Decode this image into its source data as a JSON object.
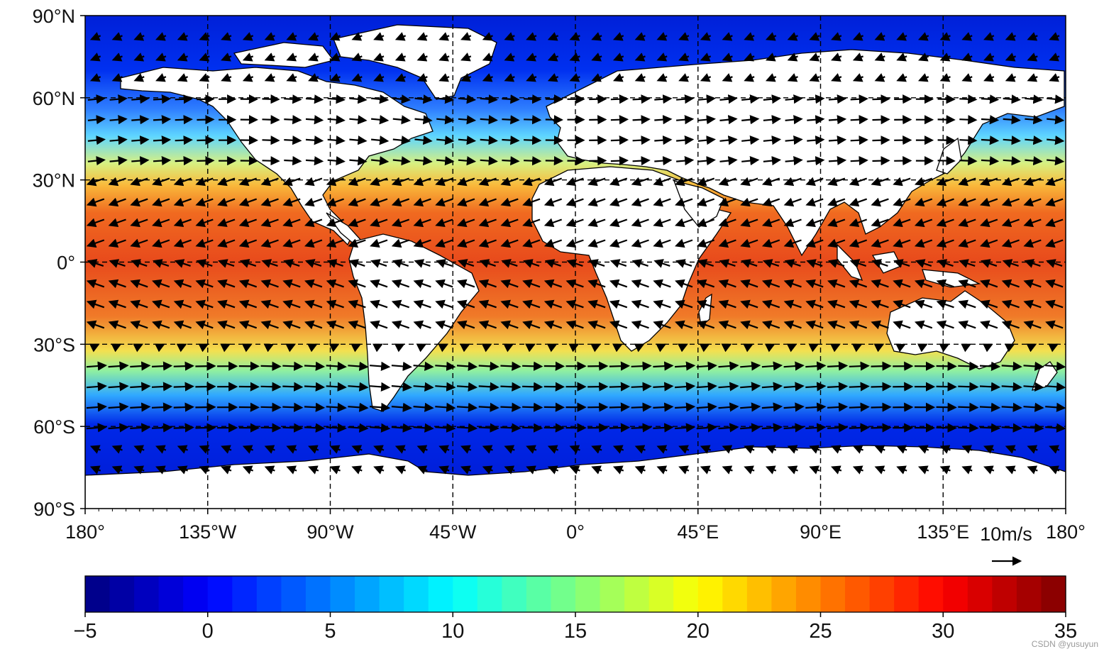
{
  "map": {
    "projection": "plate carree",
    "field": "sea surface temperature with wind vectors",
    "lon_range": [
      -180,
      180
    ],
    "lat_range": [
      -90,
      90
    ],
    "gridlines": "dashed black"
  },
  "axes": {
    "x_ticks": [
      {
        "value": -180,
        "label": "180°"
      },
      {
        "value": -135,
        "label": "135°W"
      },
      {
        "value": -90,
        "label": "90°W"
      },
      {
        "value": -45,
        "label": "45°W"
      },
      {
        "value": 0,
        "label": "0°"
      },
      {
        "value": 45,
        "label": "45°E"
      },
      {
        "value": 90,
        "label": "90°E"
      },
      {
        "value": 135,
        "label": "135°E"
      },
      {
        "value": 180,
        "label": "180°"
      }
    ],
    "y_ticks": [
      {
        "value": 90,
        "label": "90°N"
      },
      {
        "value": 60,
        "label": "60°N"
      },
      {
        "value": 30,
        "label": "30°N"
      },
      {
        "value": 0,
        "label": "0°"
      },
      {
        "value": -30,
        "label": "30°S"
      },
      {
        "value": -60,
        "label": "60°S"
      },
      {
        "value": -90,
        "label": "90°S"
      }
    ]
  },
  "quiver_key": {
    "label": "10m/s"
  },
  "colorbar": {
    "range": [
      -5,
      35
    ],
    "levels": 40,
    "ticks": [
      {
        "value": -5,
        "label": "−5"
      },
      {
        "value": 0,
        "label": "0"
      },
      {
        "value": 5,
        "label": "5"
      },
      {
        "value": 10,
        "label": "10"
      },
      {
        "value": 15,
        "label": "15"
      },
      {
        "value": 20,
        "label": "20"
      },
      {
        "value": 25,
        "label": "25"
      },
      {
        "value": 30,
        "label": "30"
      },
      {
        "value": 35,
        "label": "35"
      }
    ],
    "colormap": [
      "#00007f",
      "#0000ff",
      "#007fff",
      "#00ffff",
      "#7fff7f",
      "#ffff00",
      "#ff7f00",
      "#ff0000",
      "#7f0000"
    ]
  },
  "watermark": "CSDN @yusuyun",
  "chart_data": {
    "type": "heatmap",
    "title": "",
    "xlabel": "",
    "ylabel": "",
    "xlim": [
      -180,
      180
    ],
    "ylim": [
      -90,
      90
    ],
    "colorbar_range": [
      -5,
      35
    ],
    "sst_zonal_profile": [
      {
        "lat": 90,
        "value": -2
      },
      {
        "lat": 75,
        "value": -1
      },
      {
        "lat": 60,
        "value": 6
      },
      {
        "lat": 45,
        "value": 13
      },
      {
        "lat": 30,
        "value": 22
      },
      {
        "lat": 15,
        "value": 27
      },
      {
        "lat": 0,
        "value": 29
      },
      {
        "lat": -15,
        "value": 27
      },
      {
        "lat": -30,
        "value": 22
      },
      {
        "lat": -45,
        "value": 12
      },
      {
        "lat": -60,
        "value": 2
      },
      {
        "lat": -75,
        "value": -1
      }
    ],
    "wind_regimes": [
      {
        "lat_range": [
          40,
          60
        ],
        "direction": "westerly"
      },
      {
        "lat_range": [
          5,
          30
        ],
        "direction": "easterly trades"
      },
      {
        "lat_range": [
          -30,
          -5
        ],
        "direction": "easterly trades"
      },
      {
        "lat_range": [
          -60,
          -35
        ],
        "direction": "strong westerly"
      }
    ],
    "quiver_reference": {
      "speed_m_s": 10
    }
  }
}
